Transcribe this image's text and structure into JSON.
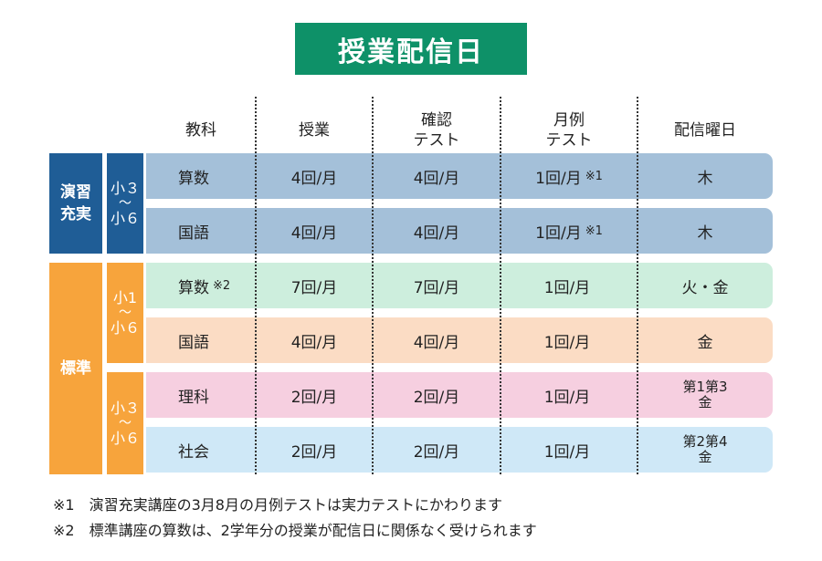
{
  "title": "授業配信日",
  "headers": [
    "教科",
    "授業",
    "確認\nテスト",
    "月例\nテスト",
    "配信曜日"
  ],
  "categories": {
    "enshu": "演習\n充実",
    "hyojun": "標準"
  },
  "grades": {
    "g36_top": {
      "top": "小３",
      "tilde": "～",
      "bottom": "小６"
    },
    "g16": {
      "top": "小1",
      "tilde": "～",
      "bottom": "小６"
    },
    "g36_bottom": {
      "top": "小３",
      "tilde": "～",
      "bottom": "小６"
    }
  },
  "rows": [
    {
      "subject": "算数",
      "subject_note": "",
      "jugyo": "4回/月",
      "kakunin": "4回/月",
      "getsurei": "1回/月",
      "getsurei_note": "※1",
      "day": "木"
    },
    {
      "subject": "国語",
      "subject_note": "",
      "jugyo": "4回/月",
      "kakunin": "4回/月",
      "getsurei": "1回/月",
      "getsurei_note": "※1",
      "day": "木"
    },
    {
      "subject": "算数",
      "subject_note": "※2",
      "jugyo": "7回/月",
      "kakunin": "7回/月",
      "getsurei": "1回/月",
      "getsurei_note": "",
      "day": "火・金"
    },
    {
      "subject": "国語",
      "subject_note": "",
      "jugyo": "4回/月",
      "kakunin": "4回/月",
      "getsurei": "1回/月",
      "getsurei_note": "",
      "day": "金"
    },
    {
      "subject": "理科",
      "subject_note": "",
      "jugyo": "2回/月",
      "kakunin": "2回/月",
      "getsurei": "1回/月",
      "getsurei_note": "",
      "day": "第1第3\n金"
    },
    {
      "subject": "社会",
      "subject_note": "",
      "jugyo": "2回/月",
      "kakunin": "2回/月",
      "getsurei": "1回/月",
      "getsurei_note": "",
      "day": "第2第4\n金"
    }
  ],
  "footnotes": [
    "※1　演習充実講座の3月8月の月例テストは実力テストにかわります",
    "※2　標準講座の算数は、2学年分の授業が配信日に関係なく受けられます"
  ],
  "colors": {
    "title_bg": "#0e9168",
    "enshu": "#1f5d96",
    "hyojun": "#f7a43c",
    "row_enshu": "#a4c0d9",
    "row_sansu_hyojun": "#cdeedd",
    "row_kokugo_hyojun": "#fbdcc4",
    "row_rika": "#f6cfe0",
    "row_shakai": "#cfe8f7"
  }
}
